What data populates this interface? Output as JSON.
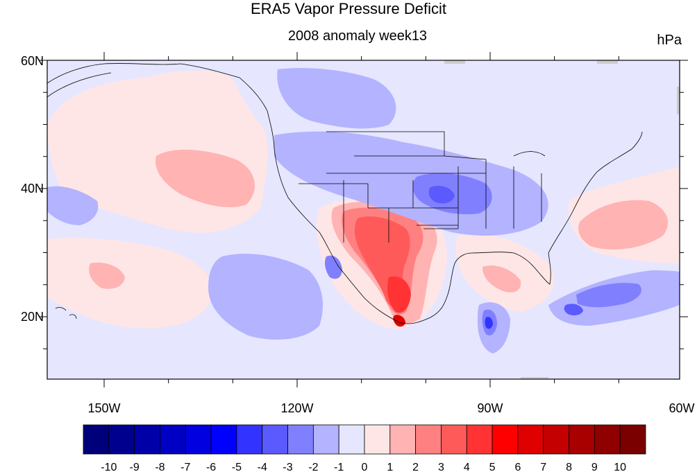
{
  "title": "ERA5 Vapor Pressure Deficit",
  "subtitle": "2008 anomaly week13",
  "units": "hPa",
  "lat_labels": [
    "60N",
    "40N",
    "20N"
  ],
  "lon_labels": [
    "150W",
    "120W",
    "90W",
    "60W"
  ],
  "colorbar": {
    "labels": [
      "-10",
      "-9",
      "-8",
      "-7",
      "-6",
      "-5",
      "-4",
      "-3",
      "-2",
      "-1",
      "0",
      "1",
      "2",
      "3",
      "4",
      "5",
      "6",
      "7",
      "8",
      "9",
      "10"
    ],
    "colors": [
      "#00007a",
      "#00008f",
      "#0000a8",
      "#0000c4",
      "#0000e0",
      "#0000ff",
      "#3333ff",
      "#5a5aff",
      "#8080ff",
      "#b3b3ff",
      "#e6e6ff",
      "#ffe6e6",
      "#ffb3b3",
      "#ff8080",
      "#ff5a5a",
      "#ff3333",
      "#ff0000",
      "#e00000",
      "#c40000",
      "#a80000",
      "#8f0000",
      "#7a0000"
    ]
  },
  "map_colors": {
    "neutral": "#e6e6ff",
    "light_pos": "#ffe6e6",
    "pos1": "#ffb3b3",
    "pos2": "#ff8080",
    "pos3": "#ff5a5a",
    "pos4": "#ff3333",
    "pos6": "#e00000",
    "neg1": "#b3b3ff",
    "neg2": "#8080ff",
    "neg3": "#5a5aff",
    "neg4": "#3333ff",
    "missing": "#cccccc"
  }
}
